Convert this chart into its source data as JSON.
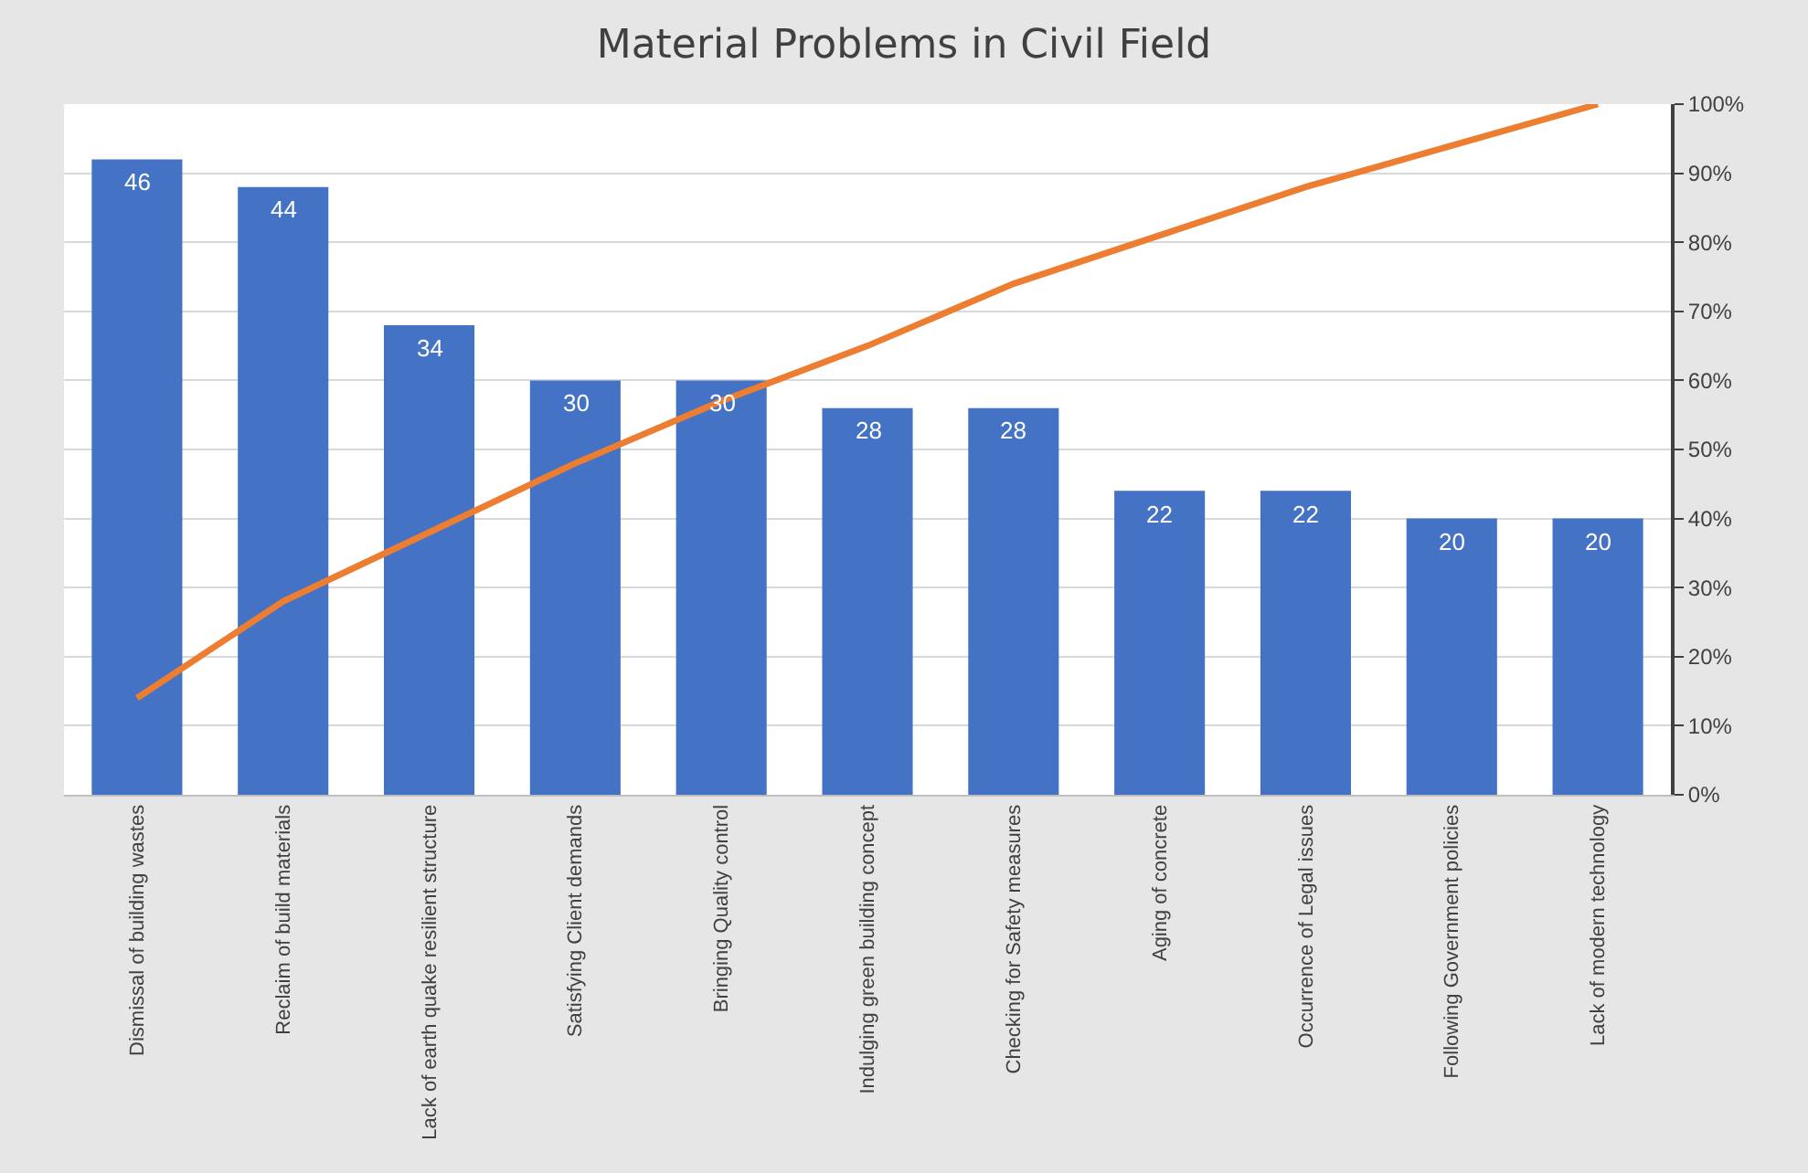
{
  "chart_data": {
    "type": "bar",
    "title": "Material Problems in Civil Field",
    "categories": [
      "Dismissal of building wastes",
      "Reclaim of build materials",
      "Lack of earth quake resilient structure",
      "Satisfying Client demands",
      "Bringing Quality control",
      "Indulging green building concept",
      "Checking for Safety measures",
      "Aging of concrete",
      "Occurrence of Legal issues",
      "Following Government policies",
      "Lack of modern technology"
    ],
    "series": [
      {
        "color": "#4472c4",
        "values": [
          46,
          44,
          34,
          30,
          30,
          28,
          28,
          22,
          22,
          20,
          20
        ],
        "value_labels": [
          "46",
          "44",
          "34",
          "30",
          "30",
          "28",
          "28",
          "22",
          "22",
          "20",
          "20"
        ]
      },
      {
        "type": "line",
        "axis": "y2",
        "color": "#ed7d31",
        "values": [
          14,
          28,
          38,
          48,
          57,
          65,
          74,
          81,
          88,
          94,
          100
        ]
      }
    ],
    "ylim": [
      0,
      50
    ],
    "y2lim": [
      0,
      100
    ],
    "y2ticks": [
      {
        "value": 0,
        "label": "0%"
      },
      {
        "value": 10,
        "label": "10%"
      },
      {
        "value": 20,
        "label": "20%"
      },
      {
        "value": 30,
        "label": "30%"
      },
      {
        "value": 40,
        "label": "40%"
      },
      {
        "value": 50,
        "label": "50%"
      },
      {
        "value": 60,
        "label": "60%"
      },
      {
        "value": 70,
        "label": "70%"
      },
      {
        "value": 80,
        "label": "80%"
      },
      {
        "value": 90,
        "label": "90%"
      },
      {
        "value": 100,
        "label": "100%"
      }
    ],
    "grid": true,
    "marker": "none",
    "line_style": "solid"
  }
}
